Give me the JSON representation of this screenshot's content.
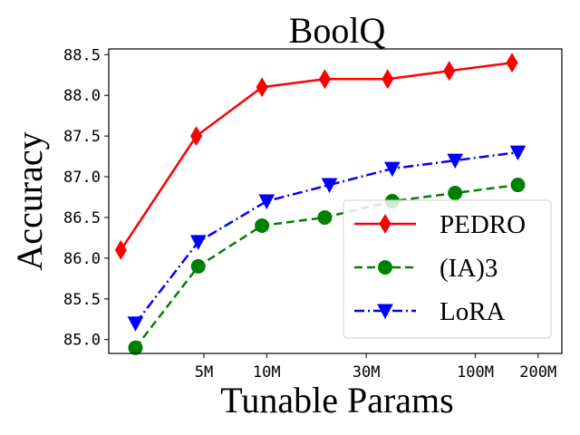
{
  "chart_data": {
    "type": "line",
    "title": "BoolQ",
    "xlabel": "Tunable Params",
    "ylabel": "Accuracy",
    "xscale": "log",
    "ylim": [
      84.83,
      88.57
    ],
    "xlim_millions": [
      1.75,
      260
    ],
    "xticks": [
      {
        "value": 5,
        "label": "5M"
      },
      {
        "value": 10,
        "label": "10M"
      },
      {
        "value": 30,
        "label": "30M"
      },
      {
        "value": 100,
        "label": "100M"
      },
      {
        "value": 200,
        "label": "200M"
      }
    ],
    "yticks": [
      {
        "value": 85.0,
        "label": "85.0"
      },
      {
        "value": 85.5,
        "label": "85.5"
      },
      {
        "value": 86.0,
        "label": "86.0"
      },
      {
        "value": 86.5,
        "label": "86.5"
      },
      {
        "value": 87.0,
        "label": "87.0"
      },
      {
        "value": 87.5,
        "label": "87.5"
      },
      {
        "value": 88.0,
        "label": "88.0"
      },
      {
        "value": 88.5,
        "label": "88.5"
      }
    ],
    "grid": false,
    "legend_position": "lower-right",
    "series": [
      {
        "name": "PEDRO",
        "color": "#ff0000",
        "marker": "thin_diamond",
        "linestyle": "solid",
        "x": [
          2.0,
          4.6,
          9.5,
          19,
          38,
          75,
          150
        ],
        "y": [
          86.1,
          87.5,
          88.1,
          88.2,
          88.2,
          88.3,
          88.4
        ]
      },
      {
        "name": "(IA)3",
        "color": "#008000",
        "marker": "circle",
        "linestyle": "dashed",
        "x": [
          2.35,
          4.7,
          9.5,
          19,
          40,
          80,
          160
        ],
        "y": [
          84.9,
          85.9,
          86.4,
          86.5,
          86.7,
          86.8,
          86.9
        ]
      },
      {
        "name": "LoRA",
        "color": "#0000ff",
        "marker": "triangle_down",
        "linestyle": "dashdot",
        "x": [
          2.35,
          4.7,
          10,
          20,
          40,
          80,
          160
        ],
        "y": [
          85.2,
          86.2,
          86.7,
          86.9,
          87.1,
          87.2,
          87.3
        ]
      }
    ]
  }
}
